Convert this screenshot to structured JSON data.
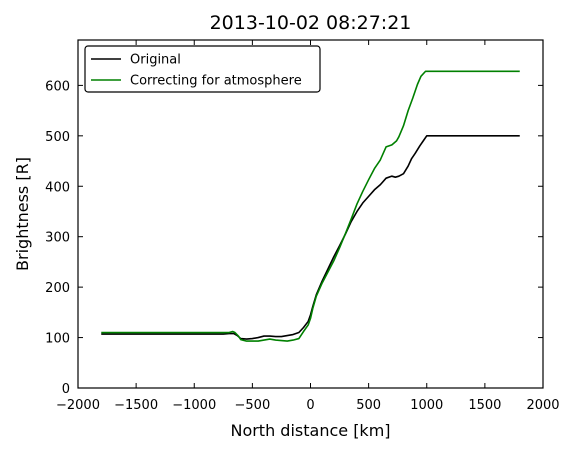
{
  "chart_data": {
    "type": "line",
    "title": "2013-10-02 08:27:21",
    "xlabel": "North distance [km]",
    "ylabel": "Brightness [R]",
    "xlim": [
      -2000,
      2000
    ],
    "ylim": [
      0,
      690
    ],
    "xticks": [
      -2000,
      -1500,
      -1000,
      -500,
      0,
      500,
      1000,
      1500,
      2000
    ],
    "xtick_labels": [
      "−2000",
      "−1500",
      "−1000",
      "−500",
      "0",
      "500",
      "1000",
      "1500",
      "2000"
    ],
    "yticks": [
      0,
      100,
      200,
      300,
      400,
      500,
      600
    ],
    "ytick_labels": [
      "0",
      "100",
      "200",
      "300",
      "400",
      "500",
      "600"
    ],
    "grid": false,
    "legend_position": "top-left",
    "series": [
      {
        "name": "Original",
        "color": "#000000",
        "x": [
          -1800,
          -1500,
          -1000,
          -750,
          -700,
          -660,
          -630,
          -600,
          -550,
          -500,
          -450,
          -400,
          -350,
          -300,
          -250,
          -200,
          -150,
          -100,
          -60,
          -20,
          0,
          20,
          50,
          100,
          150,
          200,
          250,
          300,
          350,
          400,
          450,
          500,
          550,
          600,
          650,
          700,
          730,
          760,
          800,
          840,
          870,
          900,
          940,
          970,
          1000,
          1200,
          1500,
          1800
        ],
        "y": [
          107,
          107,
          107,
          107,
          108,
          108,
          104,
          98,
          97,
          98,
          100,
          103,
          103,
          102,
          102,
          104,
          106,
          110,
          120,
          132,
          145,
          162,
          185,
          212,
          236,
          260,
          282,
          305,
          330,
          350,
          367,
          380,
          393,
          403,
          416,
          420,
          418,
          420,
          425,
          440,
          455,
          465,
          480,
          490,
          500,
          500,
          500,
          500
        ]
      },
      {
        "name": "Correcting for atmosphere",
        "color": "#008000",
        "x": [
          -1800,
          -1500,
          -1000,
          -700,
          -670,
          -650,
          -620,
          -600,
          -550,
          -500,
          -450,
          -400,
          -350,
          -300,
          -250,
          -200,
          -150,
          -100,
          -60,
          -20,
          0,
          20,
          50,
          100,
          150,
          200,
          250,
          300,
          350,
          400,
          450,
          500,
          550,
          600,
          650,
          700,
          740,
          760,
          800,
          840,
          880,
          920,
          950,
          990,
          1000,
          1200,
          1500,
          1800
        ],
        "y": [
          110,
          110,
          110,
          110,
          112,
          110,
          103,
          96,
          93,
          93,
          93,
          95,
          97,
          95,
          94,
          93,
          95,
          98,
          112,
          125,
          138,
          158,
          182,
          208,
          230,
          252,
          278,
          306,
          335,
          365,
          390,
          413,
          435,
          452,
          478,
          482,
          490,
          498,
          520,
          550,
          575,
          602,
          618,
          628,
          628,
          628,
          628,
          628
        ]
      }
    ]
  }
}
